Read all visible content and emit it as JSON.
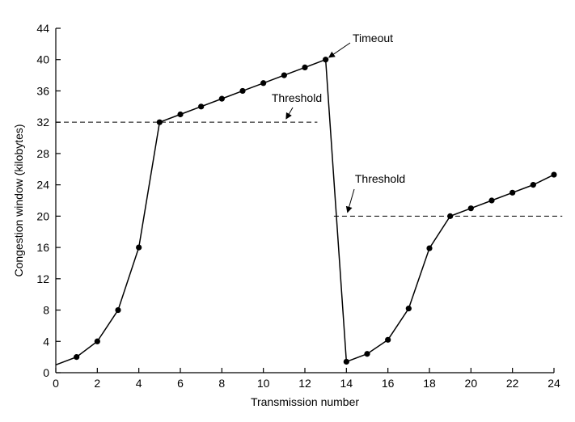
{
  "chart_data": {
    "type": "line",
    "title": "",
    "xlabel": "Transmission number",
    "ylabel": "Congestion window (kilobytes)",
    "xlim": [
      0,
      24
    ],
    "ylim": [
      0,
      44
    ],
    "x_ticks": [
      0,
      2,
      4,
      6,
      8,
      10,
      12,
      14,
      16,
      18,
      20,
      22,
      24
    ],
    "y_ticks": [
      0,
      4,
      8,
      12,
      16,
      20,
      24,
      28,
      32,
      36,
      40,
      44
    ],
    "grid": false,
    "series": [
      {
        "x": [
          0,
          1,
          2,
          3,
          4,
          5,
          6,
          7,
          8,
          9,
          10,
          11,
          12,
          13,
          14,
          15,
          16,
          17,
          18,
          19,
          20,
          21,
          22,
          23,
          24
        ],
        "values": [
          1,
          2,
          4,
          8,
          16,
          32,
          33,
          34,
          35,
          36,
          37,
          38,
          39,
          40,
          1.4,
          2.4,
          4.2,
          8.2,
          15.9,
          20,
          21,
          22,
          23,
          24,
          25.3
        ],
        "marker_from_index": 1
      }
    ],
    "reference_lines": [
      {
        "label": "Threshold",
        "y": 32,
        "x_range": [
          0,
          12.6
        ]
      },
      {
        "label": "Threshold",
        "y": 20,
        "x_range": [
          13.4,
          24.4
        ]
      }
    ],
    "annotations": [
      {
        "text": "Timeout",
        "points_to": [
          13,
          40
        ]
      },
      {
        "text": "Threshold",
        "points_to": [
          11,
          32
        ]
      },
      {
        "text": "Threshold",
        "points_to": [
          14.0,
          20
        ]
      }
    ],
    "colors": {
      "line": "#000000",
      "marker": "#000000"
    }
  }
}
